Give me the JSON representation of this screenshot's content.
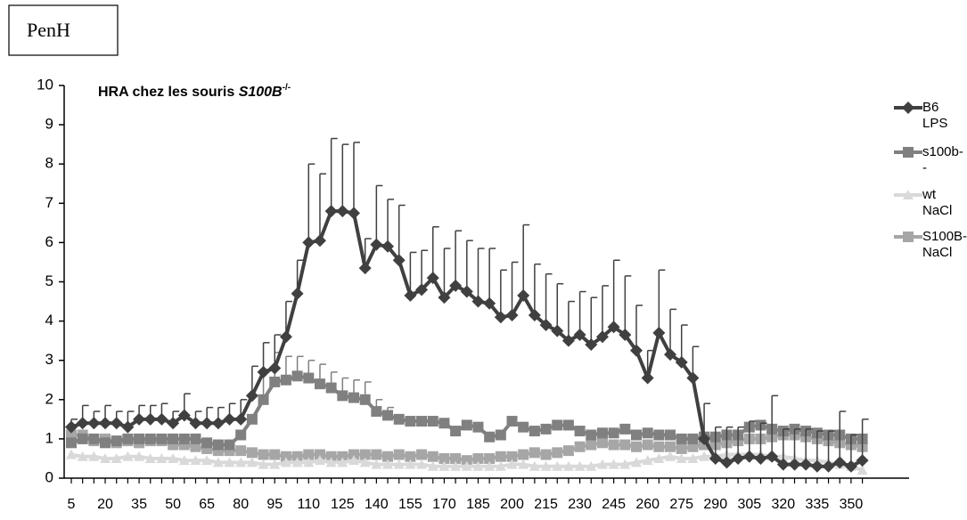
{
  "chart_data": {
    "type": "line",
    "y_label": "PenH",
    "title": [
      "HRA chez les souris ",
      "S100B",
      "-/-"
    ],
    "categories": [
      5,
      null,
      null,
      20,
      null,
      null,
      35,
      null,
      null,
      50,
      null,
      null,
      65,
      null,
      null,
      80,
      null,
      null,
      95,
      null,
      null,
      110,
      null,
      null,
      125,
      null,
      null,
      140,
      null,
      null,
      155,
      null,
      null,
      170,
      null,
      null,
      185,
      null,
      null,
      200,
      null,
      null,
      215,
      null,
      null,
      230,
      null,
      null,
      245,
      null,
      null,
      260,
      null,
      null,
      275,
      null,
      null,
      290,
      null,
      null,
      305,
      null,
      null,
      320,
      null,
      null,
      335,
      null,
      null,
      350,
      null
    ],
    "ylim": [
      0,
      10
    ],
    "yticks": [
      0,
      1,
      2,
      3,
      4,
      5,
      6,
      7,
      8,
      9,
      10
    ],
    "legend": "right",
    "series": [
      {
        "name": "B6 LPS",
        "color": "#404040",
        "marker": "diamond",
        "values": [
          1.3,
          1.4,
          1.4,
          1.4,
          1.4,
          1.3,
          1.5,
          1.5,
          1.5,
          1.4,
          1.6,
          1.4,
          1.4,
          1.4,
          1.5,
          1.5,
          2.1,
          2.7,
          2.8,
          3.6,
          4.7,
          6.0,
          6.05,
          6.8,
          6.8,
          6.75,
          5.35,
          5.95,
          5.9,
          5.55,
          4.65,
          4.8,
          5.1,
          4.6,
          4.9,
          4.75,
          4.5,
          4.45,
          4.1,
          4.15,
          4.65,
          4.15,
          3.9,
          3.75,
          3.5,
          3.65,
          3.4,
          3.6,
          3.85,
          3.65,
          3.25,
          2.55,
          3.7,
          3.15,
          2.95,
          2.55,
          1.0,
          0.5,
          0.4,
          0.5,
          0.55,
          0.5,
          0.55,
          0.35,
          0.35,
          0.35,
          0.3,
          0.3,
          0.4,
          0.3,
          0.45
        ],
        "errors": [
          0.2,
          0.45,
          0.3,
          0.45,
          0.3,
          0.4,
          0.35,
          0.35,
          0.4,
          0.3,
          0.55,
          0.3,
          0.4,
          0.4,
          0.4,
          0.5,
          0.75,
          0.75,
          0.85,
          0.9,
          0.85,
          2.0,
          1.7,
          1.85,
          1.7,
          1.8,
          0.75,
          1.5,
          1.2,
          1.4,
          1.1,
          1.0,
          1.3,
          1.25,
          1.4,
          1.3,
          1.35,
          1.4,
          1.2,
          1.35,
          1.8,
          1.3,
          1.3,
          1.2,
          1.0,
          1.1,
          1.2,
          1.3,
          1.7,
          1.5,
          1.15,
          0.7,
          1.6,
          1.15,
          0.95,
          0.8,
          0.9,
          0.8,
          0.9,
          0.8,
          0.9,
          0.9,
          1.55,
          0.9,
          0.9,
          0.9,
          0.9,
          0.9,
          1.3,
          0.8,
          1.05
        ]
      },
      {
        "name": "s100b--",
        "color": "#808080",
        "marker": "square",
        "values": [
          0.9,
          1.0,
          1.0,
          0.9,
          0.95,
          1.0,
          1.0,
          1.0,
          1.0,
          1.0,
          1.0,
          1.0,
          0.9,
          0.85,
          0.85,
          1.1,
          1.5,
          2.0,
          2.45,
          2.5,
          2.6,
          2.55,
          2.4,
          2.3,
          2.1,
          2.05,
          2.0,
          1.7,
          1.6,
          1.5,
          1.45,
          1.45,
          1.45,
          1.4,
          1.2,
          1.35,
          1.3,
          1.05,
          1.1,
          1.45,
          1.3,
          1.2,
          1.25,
          1.35,
          1.35,
          1.2,
          1.1,
          1.15,
          1.15,
          1.25,
          1.1,
          1.15,
          1.1,
          1.1,
          1.0,
          1.0,
          1.05,
          1.05,
          1.1,
          1.1,
          1.3,
          1.35,
          1.25,
          1.2,
          1.25,
          1.2,
          1.15,
          1.1,
          1.1,
          1.0,
          1.0
        ],
        "errors": [
          null,
          null,
          null,
          null,
          null,
          null,
          null,
          null,
          null,
          null,
          null,
          null,
          null,
          null,
          null,
          null,
          null,
          0.7,
          0.75,
          0.6,
          0.5,
          0.45,
          0.5,
          0.4,
          0.45,
          0.45,
          0.45,
          0.3,
          0.2,
          null,
          null,
          null,
          null,
          null,
          null,
          null,
          null,
          null,
          null,
          null,
          null,
          null,
          null,
          null,
          null,
          null,
          null,
          null,
          null,
          null,
          null,
          null,
          null,
          null,
          null,
          null,
          null,
          null,
          null,
          null,
          null,
          null,
          null,
          null,
          null,
          null,
          null,
          null,
          null,
          null,
          null
        ]
      },
      {
        "name": "wt NaCl",
        "color": "#d9d9d9",
        "marker": "triangle",
        "values": [
          0.6,
          0.55,
          0.55,
          0.5,
          0.5,
          0.55,
          0.55,
          0.5,
          0.5,
          0.5,
          0.45,
          0.45,
          0.45,
          0.4,
          0.4,
          0.4,
          0.4,
          0.35,
          0.35,
          0.4,
          0.4,
          0.4,
          0.45,
          0.4,
          0.4,
          0.45,
          0.4,
          0.35,
          0.35,
          0.35,
          0.35,
          0.35,
          0.3,
          0.3,
          0.3,
          0.3,
          0.3,
          0.3,
          0.3,
          0.35,
          0.35,
          0.3,
          0.3,
          0.3,
          0.3,
          0.3,
          0.3,
          0.35,
          0.35,
          0.35,
          0.4,
          0.45,
          0.5,
          0.55,
          0.5,
          0.5,
          0.55,
          0.55,
          0.6,
          0.6,
          0.6,
          0.6,
          0.55,
          0.55,
          0.5,
          0.45,
          0.45,
          0.4,
          0.35,
          0.3,
          0.2
        ]
      },
      {
        "name": "S100B-/- NaCl",
        "color": "#a6a6a6",
        "marker": "square",
        "values": [
          1.1,
          1.1,
          0.95,
          1.0,
          0.9,
          0.95,
          0.9,
          0.95,
          0.95,
          0.85,
          0.85,
          0.8,
          0.75,
          0.7,
          0.7,
          0.7,
          0.65,
          0.6,
          0.6,
          0.55,
          0.55,
          0.6,
          0.6,
          0.55,
          0.55,
          0.6,
          0.6,
          0.6,
          0.55,
          0.6,
          0.55,
          0.6,
          0.55,
          0.5,
          0.5,
          0.45,
          0.5,
          0.5,
          0.55,
          0.55,
          0.6,
          0.65,
          0.6,
          0.65,
          0.7,
          0.8,
          0.85,
          0.9,
          0.85,
          0.85,
          0.8,
          0.85,
          0.8,
          0.8,
          0.75,
          0.8,
          0.85,
          0.85,
          0.9,
          0.95,
          1.0,
          1.0,
          1.05,
          1.1,
          1.1,
          1.05,
          1.0,
          0.95,
          0.9,
          0.85,
          0.8
        ]
      }
    ]
  }
}
